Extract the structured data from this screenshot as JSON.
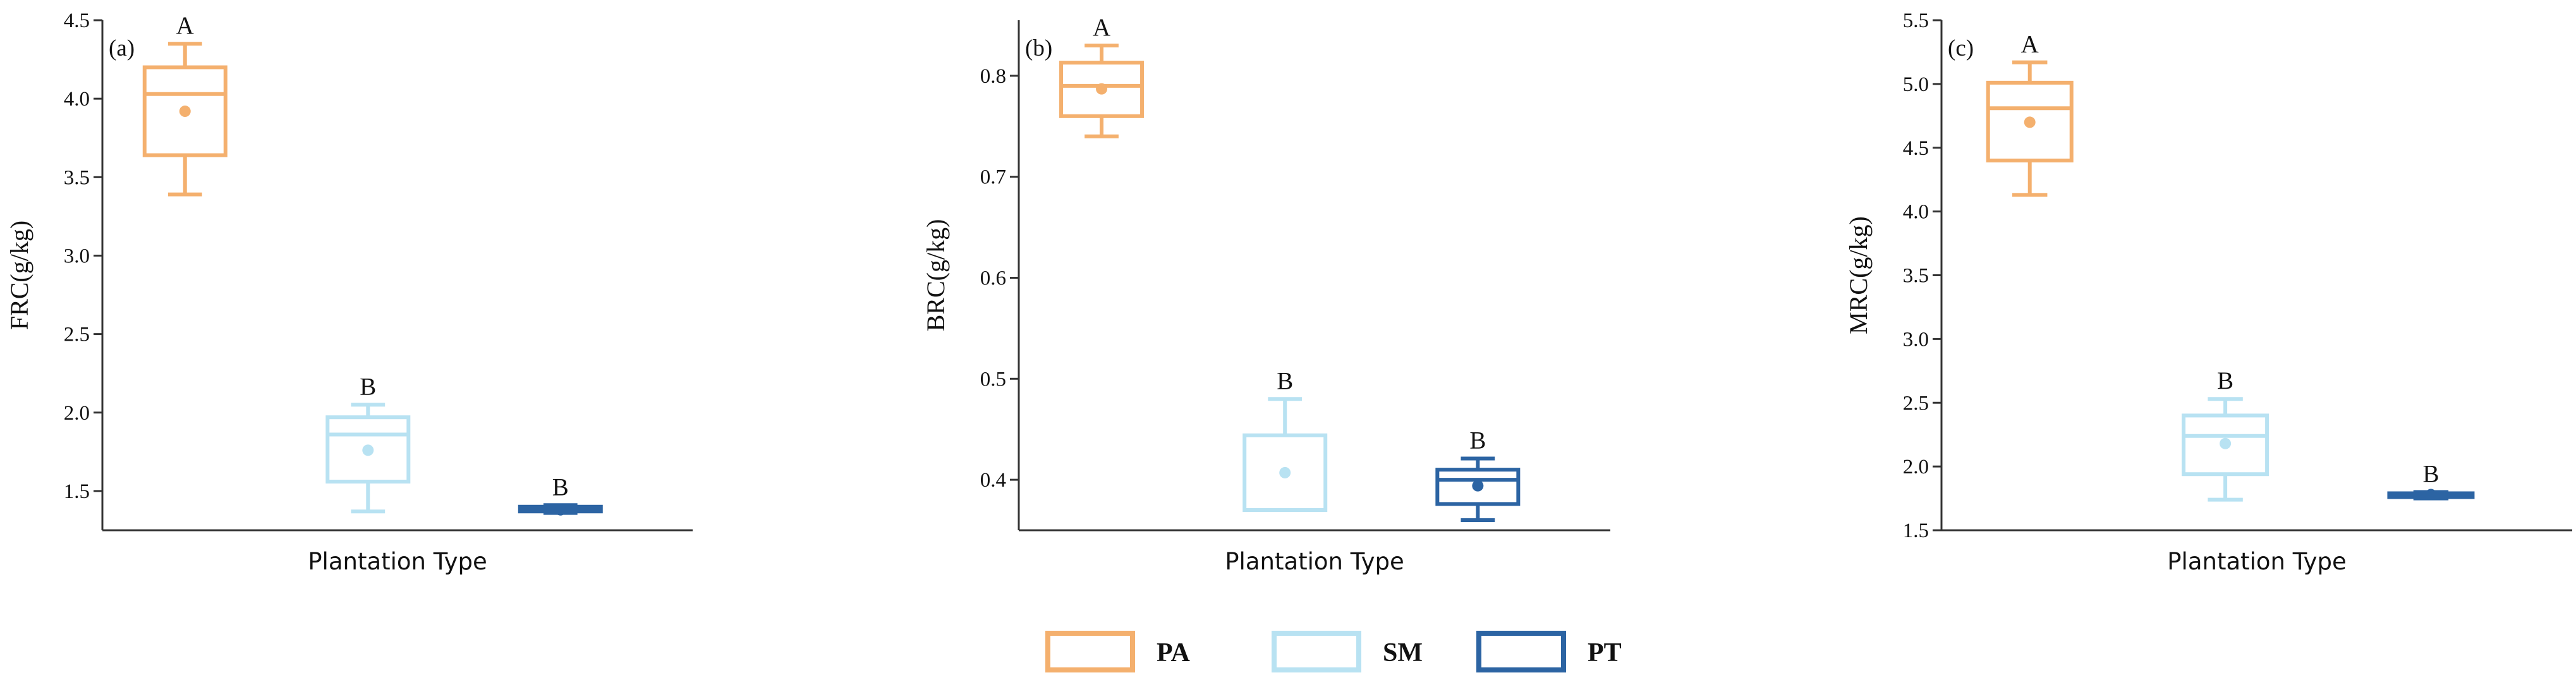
{
  "chart_data": [
    {
      "type": "box",
      "panel_label": "(a)",
      "ylabel": "FRC(g/kg)",
      "xlabel": "Plantation Type",
      "ylim": [
        1.25,
        4.5
      ],
      "yticks": [
        "1.5",
        "2.0",
        "2.5",
        "3.0",
        "3.5",
        "4.0",
        "4.5"
      ],
      "ytick_values": [
        1.5,
        2.0,
        2.5,
        3.0,
        3.5,
        4.0,
        4.5
      ],
      "boxes": [
        {
          "group": "PA",
          "min": 3.39,
          "q1": 3.64,
          "median": 4.03,
          "q3": 4.2,
          "max": 4.35,
          "mean": 3.92,
          "sig": "A"
        },
        {
          "group": "SM",
          "min": 1.37,
          "q1": 1.56,
          "median": 1.86,
          "q3": 1.97,
          "max": 2.05,
          "mean": 1.76,
          "sig": "B"
        },
        {
          "group": "PT",
          "min": 1.36,
          "q1": 1.37,
          "median": 1.38,
          "q3": 1.4,
          "max": 1.41,
          "mean": 1.38,
          "sig": "B"
        }
      ]
    },
    {
      "type": "box",
      "panel_label": "(b)",
      "ylabel": "BRC(g/kg)",
      "xlabel": "Plantation Type",
      "ylim": [
        0.35,
        0.855
      ],
      "yticks": [
        "0.4",
        "0.5",
        "0.6",
        "0.7",
        "0.8"
      ],
      "ytick_values": [
        0.4,
        0.5,
        0.6,
        0.7,
        0.8
      ],
      "boxes": [
        {
          "group": "PA",
          "min": 0.74,
          "q1": 0.76,
          "median": 0.79,
          "q3": 0.813,
          "max": 0.83,
          "mean": 0.787,
          "sig": "A"
        },
        {
          "group": "SM",
          "min": 0.37,
          "q1": 0.37,
          "median": 0.37,
          "q3": 0.444,
          "max": 0.48,
          "mean": 0.407,
          "sig": "B"
        },
        {
          "group": "PT",
          "min": 0.36,
          "q1": 0.376,
          "median": 0.4,
          "q3": 0.41,
          "max": 0.421,
          "mean": 0.394,
          "sig": "B"
        }
      ]
    },
    {
      "type": "box",
      "panel_label": "(c)",
      "ylabel": "MRC(g/kg)",
      "xlabel": "Plantation Type",
      "ylim": [
        1.5,
        5.5
      ],
      "yticks": [
        "1.5",
        "2.0",
        "2.5",
        "3.0",
        "3.5",
        "4.0",
        "4.5",
        "5.0",
        "5.5"
      ],
      "ytick_values": [
        1.5,
        2.0,
        2.5,
        3.0,
        3.5,
        4.0,
        4.5,
        5.0,
        5.5
      ],
      "boxes": [
        {
          "group": "PA",
          "min": 4.13,
          "q1": 4.4,
          "median": 4.81,
          "q3": 5.01,
          "max": 5.17,
          "mean": 4.7,
          "sig": "A"
        },
        {
          "group": "SM",
          "min": 1.74,
          "q1": 1.94,
          "median": 2.24,
          "q3": 2.4,
          "max": 2.53,
          "mean": 2.18,
          "sig": "B"
        },
        {
          "group": "PT",
          "min": 1.75,
          "q1": 1.76,
          "median": 1.78,
          "q3": 1.79,
          "max": 1.8,
          "mean": 1.78,
          "sig": "B"
        }
      ]
    }
  ],
  "legend": [
    {
      "label": "PA",
      "color": "#F4B06E"
    },
    {
      "label": "SM",
      "color": "#B8E2F2"
    },
    {
      "label": "PT",
      "color": "#2C64A3"
    }
  ]
}
